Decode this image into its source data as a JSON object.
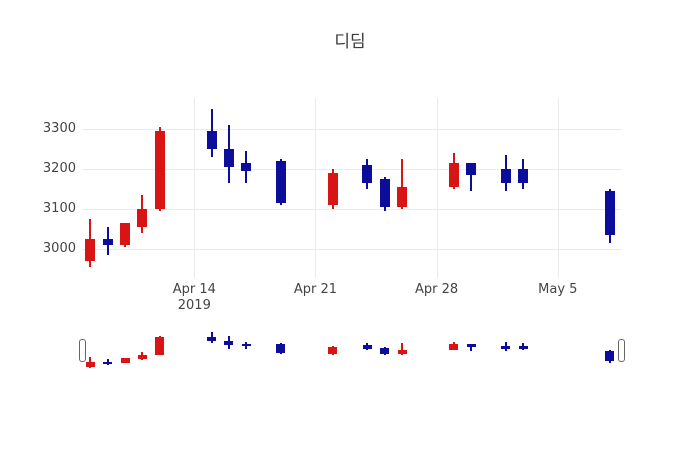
{
  "title": "디딤",
  "chart_data": {
    "type": "candlestick",
    "title": "디딤",
    "legend": "none",
    "grid": "on",
    "colors": {
      "increasing": "#d91414",
      "decreasing": "#0d0d9c",
      "grid": "#ebebeb",
      "text": "#444444",
      "background": "#ffffff"
    },
    "y_axis": {
      "ticks": [
        3300,
        3200,
        3100,
        3000
      ],
      "range": [
        2925,
        3372
      ]
    },
    "x_axis": {
      "ticks": [
        {
          "day": 0,
          "label": "Apr 14",
          "sublabel": "2019"
        },
        {
          "day": 7,
          "label": "Apr 21",
          "sublabel": ""
        },
        {
          "day": 14,
          "label": "Apr 28",
          "sublabel": ""
        },
        {
          "day": 21,
          "label": "May 5",
          "sublabel": ""
        }
      ]
    },
    "rangeslider": {
      "visible": true,
      "full_range_selected": true
    },
    "candles": [
      {
        "date": "Apr 8",
        "day": -6,
        "open": 2970,
        "high": 3075,
        "low": 2955,
        "close": 3025
      },
      {
        "date": "Apr 9",
        "day": -5,
        "open": 3025,
        "high": 3055,
        "low": 2985,
        "close": 3010
      },
      {
        "date": "Apr 10",
        "day": -4,
        "open": 3010,
        "high": 3065,
        "low": 3005,
        "close": 3065
      },
      {
        "date": "Apr 11",
        "day": -3,
        "open": 3055,
        "high": 3135,
        "low": 3040,
        "close": 3100
      },
      {
        "date": "Apr 12",
        "day": -2,
        "open": 3100,
        "high": 3305,
        "low": 3095,
        "close": 3295
      },
      {
        "date": "Apr 15",
        "day": 1,
        "open": 3295,
        "high": 3350,
        "low": 3230,
        "close": 3250
      },
      {
        "date": "Apr 16",
        "day": 2,
        "open": 3250,
        "high": 3310,
        "low": 3165,
        "close": 3205
      },
      {
        "date": "Apr 17",
        "day": 3,
        "open": 3215,
        "high": 3245,
        "low": 3165,
        "close": 3195
      },
      {
        "date": "Apr 19",
        "day": 5,
        "open": 3220,
        "high": 3225,
        "low": 3110,
        "close": 3115
      },
      {
        "date": "Apr 22",
        "day": 8,
        "open": 3110,
        "high": 3200,
        "low": 3100,
        "close": 3190
      },
      {
        "date": "Apr 24",
        "day": 10,
        "open": 3210,
        "high": 3225,
        "low": 3150,
        "close": 3165
      },
      {
        "date": "Apr 25",
        "day": 11,
        "open": 3175,
        "high": 3180,
        "low": 3095,
        "close": 3105
      },
      {
        "date": "Apr 26",
        "day": 12,
        "open": 3105,
        "high": 3225,
        "low": 3100,
        "close": 3155
      },
      {
        "date": "Apr 29",
        "day": 15,
        "open": 3155,
        "high": 3240,
        "low": 3150,
        "close": 3215
      },
      {
        "date": "Apr 30",
        "day": 16,
        "open": 3215,
        "high": 3215,
        "low": 3145,
        "close": 3185
      },
      {
        "date": "May 2",
        "day": 18,
        "open": 3200,
        "high": 3235,
        "low": 3145,
        "close": 3165
      },
      {
        "date": "May 3",
        "day": 19,
        "open": 3200,
        "high": 3225,
        "low": 3150,
        "close": 3165
      },
      {
        "date": "May 8",
        "day": 24,
        "open": 3145,
        "high": 3150,
        "low": 3015,
        "close": 3035
      }
    ]
  }
}
